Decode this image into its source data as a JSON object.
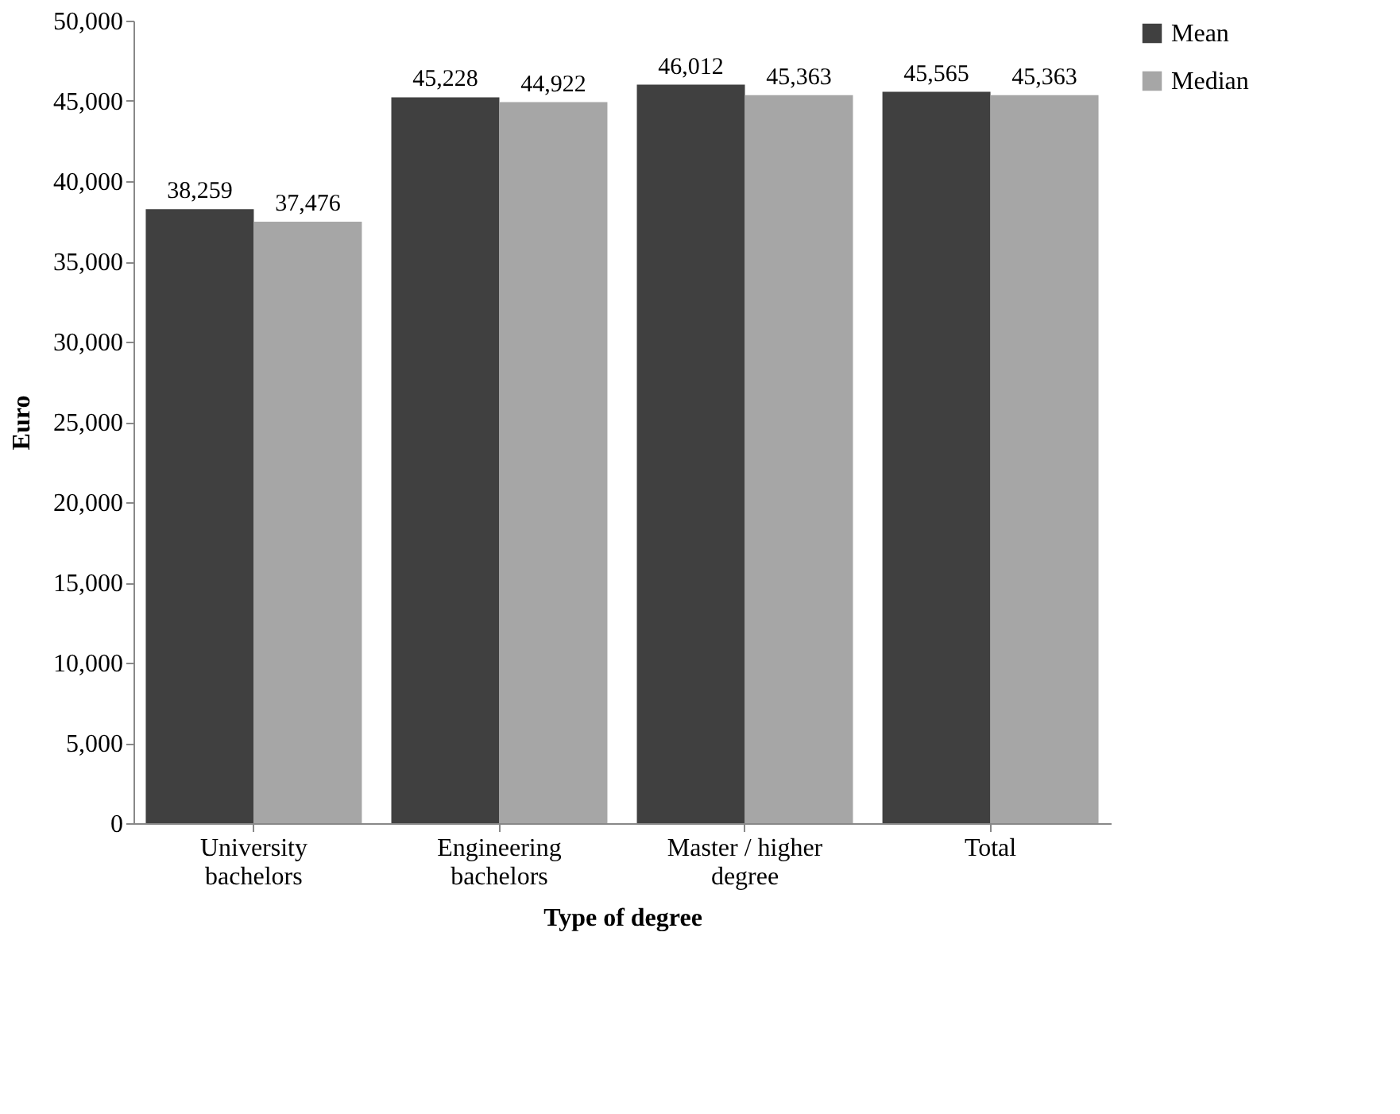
{
  "chart_data": {
    "type": "bar",
    "xlabel": "Type of degree",
    "ylabel": "Euro",
    "categories": [
      "University bachelors",
      "Engineering bachelors",
      "Master / higher degree",
      "Total"
    ],
    "series": [
      {
        "name": "Mean",
        "color": "#404040",
        "values": [
          38259,
          45228,
          46012,
          45565
        ],
        "value_labels": [
          "38,259",
          "45,228",
          "46,012",
          "45,565"
        ]
      },
      {
        "name": "Median",
        "color": "#a6a6a6",
        "values": [
          37476,
          44922,
          45363,
          45363
        ],
        "value_labels": [
          "37,476",
          "44,922",
          "45,363",
          "45,363"
        ]
      }
    ],
    "ylim": [
      0,
      50000
    ],
    "yticks": [
      0,
      {
        "value": 5000,
        "label": "5,000"
      },
      {
        "value": 10000,
        "label": "10,000"
      },
      {
        "value": 15000,
        "label": "15,000"
      },
      {
        "value": 20000,
        "label": "20,000"
      },
      {
        "value": 25000,
        "label": "25,000"
      },
      {
        "value": 30000,
        "label": "30,000"
      },
      {
        "value": 35000,
        "label": "35,000"
      },
      {
        "value": 40000,
        "label": "40,000"
      },
      {
        "value": 45000,
        "label": "45,000"
      },
      {
        "value": 50000,
        "label": "50,000"
      }
    ],
    "grid": false,
    "legend": "right"
  }
}
